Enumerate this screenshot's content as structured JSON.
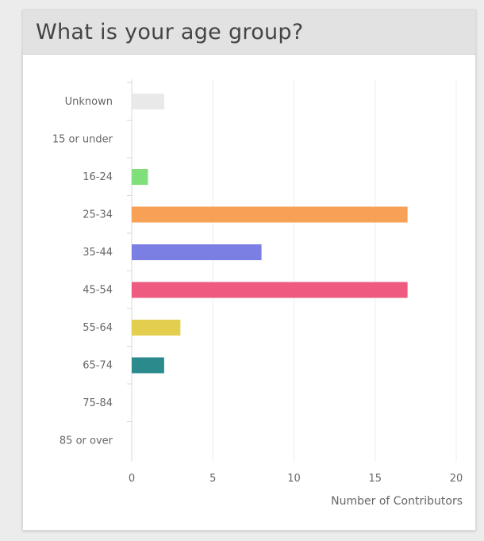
{
  "panel": {
    "title": "What is your age group?"
  },
  "chart_data": {
    "type": "bar",
    "orientation": "horizontal",
    "title": "What is your age group?",
    "xlabel": "Number of Contributors",
    "ylabel": "",
    "xlim": [
      0,
      20
    ],
    "xticks": [
      0,
      5,
      10,
      15,
      20
    ],
    "grid": true,
    "legend": "none",
    "categories": [
      "Unknown",
      "15 or under",
      "16-24",
      "25-34",
      "35-44",
      "45-54",
      "55-64",
      "65-74",
      "75-84",
      "85 or over"
    ],
    "values": [
      2,
      0,
      1,
      17,
      8,
      17,
      3,
      2,
      0,
      0
    ],
    "colors": [
      "#e9e9e9",
      "#f3f3f3",
      "#7fe07a",
      "#f7a157",
      "#7b7fe4",
      "#ee5a80",
      "#e3cf4d",
      "#2a8a8c",
      "#cccccc",
      "#cccccc"
    ]
  }
}
